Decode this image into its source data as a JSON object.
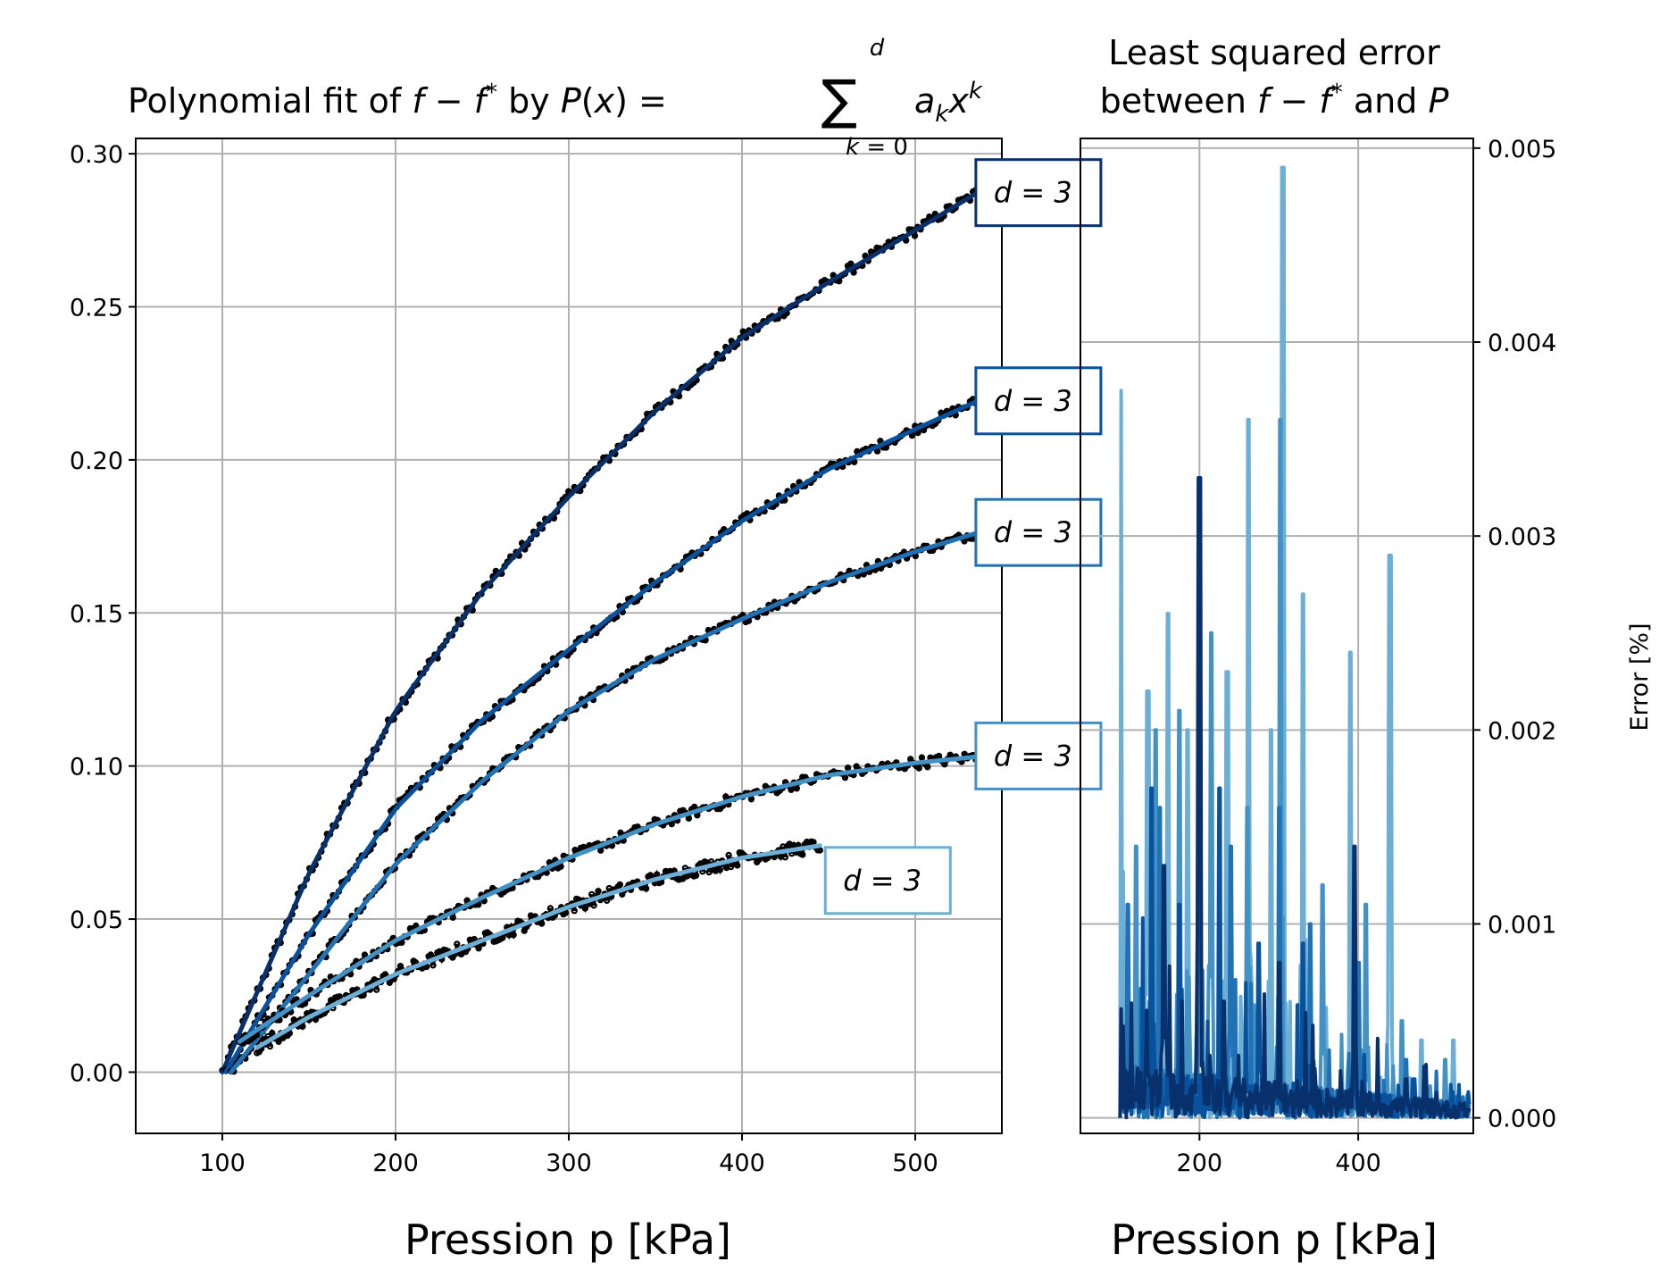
{
  "chart_data": [
    {
      "type": "line",
      "title": "Polynomial fit of f − f* by P(x) = Σ a_k x^k, k = 0..d",
      "xlabel": "Pression p [kPa]",
      "ylabel": "",
      "xlim": [
        50,
        550
      ],
      "ylim": [
        -0.02,
        0.305
      ],
      "xticks": [
        100,
        200,
        300,
        400,
        500
      ],
      "yticks": [
        0.0,
        0.05,
        0.1,
        0.15,
        0.2,
        0.25,
        0.3
      ],
      "xtick_labels": [
        "100",
        "200",
        "300",
        "400",
        "500"
      ],
      "ytick_labels": [
        "0.00",
        "0.05",
        "0.10",
        "0.15",
        "0.20",
        "0.25",
        "0.30"
      ],
      "grid": true,
      "series": [
        {
          "label": "d = 3",
          "color": "#08306b",
          "x_range": [
            100,
            535
          ],
          "x": [
            100,
            150,
            200,
            250,
            300,
            350,
            400,
            450,
            500,
            535
          ],
          "y": [
            0.0,
            0.065,
            0.118,
            0.157,
            0.188,
            0.216,
            0.24,
            0.258,
            0.275,
            0.287
          ]
        },
        {
          "label": "d = 3",
          "color": "#08519c",
          "x_range": [
            102,
            535
          ],
          "x": [
            102,
            150,
            200,
            250,
            300,
            350,
            400,
            450,
            500,
            535
          ],
          "y": [
            0.0,
            0.045,
            0.086,
            0.115,
            0.138,
            0.16,
            0.18,
            0.197,
            0.21,
            0.219
          ]
        },
        {
          "label": "d = 3",
          "color": "#2171b5",
          "x_range": [
            105,
            535
          ],
          "x": [
            105,
            150,
            200,
            250,
            300,
            350,
            400,
            450,
            500,
            535
          ],
          "y": [
            0.0,
            0.032,
            0.068,
            0.095,
            0.118,
            0.135,
            0.148,
            0.16,
            0.17,
            0.176
          ]
        },
        {
          "label": "d = 3",
          "color": "#4292c6",
          "x_range": [
            110,
            535
          ],
          "x": [
            110,
            150,
            200,
            250,
            300,
            350,
            400,
            450,
            500,
            535
          ],
          "y": [
            0.01,
            0.025,
            0.043,
            0.057,
            0.07,
            0.081,
            0.09,
            0.097,
            0.101,
            0.103
          ]
        },
        {
          "label": "d = 3",
          "color": "#6baed6",
          "x_range": [
            120,
            445
          ],
          "x": [
            120,
            150,
            200,
            250,
            300,
            350,
            400,
            445
          ],
          "y": [
            0.008,
            0.018,
            0.032,
            0.043,
            0.054,
            0.063,
            0.07,
            0.074
          ]
        }
      ]
    },
    {
      "type": "line",
      "title": "Least squared error between f − f* and P",
      "xlabel": "Pression p [kPa]",
      "ylabel": "Error [%]",
      "xlim": [
        50,
        545
      ],
      "ylim": [
        -8e-05,
        0.00505
      ],
      "xticks": [
        200,
        400
      ],
      "yticks": [
        0.0,
        0.001,
        0.002,
        0.003,
        0.004,
        0.005
      ],
      "xtick_labels": [
        "200",
        "400"
      ],
      "ytick_labels": [
        "0.000",
        "0.001",
        "0.002",
        "0.003",
        "0.004",
        "0.005"
      ],
      "grid": true,
      "series": [
        {
          "label": "d = 3",
          "color": "#6baed6",
          "x_range": [
            100,
            540
          ],
          "peaks": [
            [
              100,
              0.00375
            ],
            [
              135,
              0.0022
            ],
            [
              160,
              0.0026
            ],
            [
              185,
              0.002
            ],
            [
              235,
              0.0023
            ],
            [
              262,
              0.0036
            ],
            [
              290,
              0.002
            ],
            [
              305,
              0.0049
            ],
            [
              330,
              0.0027
            ],
            [
              390,
              0.0024
            ],
            [
              440,
              0.0029
            ],
            [
              480,
              0.0004
            ],
            [
              520,
              0.0004
            ]
          ]
        },
        {
          "label": "d = 3",
          "color": "#4292c6",
          "x_range": [
            100,
            540
          ],
          "peaks": [
            [
              120,
              0.0014
            ],
            [
              145,
              0.002
            ],
            [
              175,
              0.0021
            ],
            [
              215,
              0.0025
            ],
            [
              260,
              0.0016
            ],
            [
              302,
              0.0036
            ],
            [
              355,
              0.0012
            ],
            [
              410,
              0.0011
            ],
            [
              455,
              0.0005
            ],
            [
              510,
              0.0003
            ]
          ]
        },
        {
          "label": "d = 3",
          "color": "#2171b5",
          "x_range": [
            100,
            540
          ],
          "peaks": [
            [
              110,
              0.0011
            ],
            [
              150,
              0.0016
            ],
            [
              200,
              0.0023
            ],
            [
              240,
              0.0014
            ],
            [
              300,
              0.0016
            ],
            [
              340,
              0.001
            ],
            [
              400,
              0.0008
            ],
            [
              460,
              0.0003
            ]
          ]
        },
        {
          "label": "d = 3",
          "color": "#08519c",
          "x_range": [
            100,
            540
          ],
          "peaks": [
            [
              98,
              0.0024
            ],
            [
              140,
              0.0017
            ],
            [
              175,
              0.0011
            ],
            [
              225,
              0.0017
            ],
            [
              275,
              0.0009
            ],
            [
              330,
              0.0009
            ],
            [
              395,
              0.0006
            ],
            [
              470,
              0.0002
            ]
          ]
        },
        {
          "label": "d = 3",
          "color": "#08306b",
          "x_range": [
            100,
            540
          ],
          "peaks": [
            [
              98,
              0.0023
            ],
            [
              155,
              0.0013
            ],
            [
              200,
              0.0033
            ],
            [
              230,
              0.0006
            ],
            [
              300,
              0.0008
            ],
            [
              395,
              0.0014
            ],
            [
              460,
              0.0002
            ]
          ]
        }
      ]
    }
  ]
}
